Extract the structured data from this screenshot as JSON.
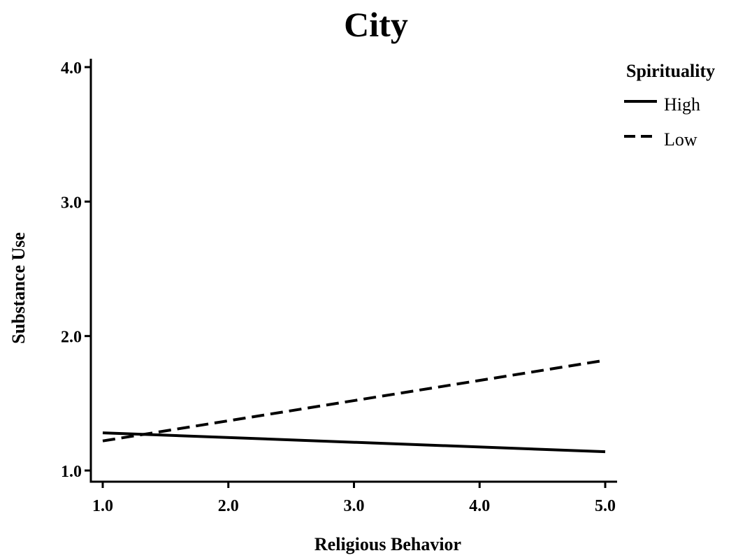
{
  "chart_data": {
    "type": "line",
    "title": "City",
    "xlabel": "Religious Behavior",
    "ylabel": "Substance Use",
    "xlim": [
      1.0,
      5.0
    ],
    "ylim": [
      1.0,
      4.0
    ],
    "xticks": [
      "1.0",
      "2.0",
      "3.0",
      "4.0",
      "5.0"
    ],
    "yticks": [
      "1.0",
      "2.0",
      "3.0",
      "4.0"
    ],
    "grid": false,
    "legend": {
      "title": "Spirituality",
      "placement": "top-right"
    },
    "x": [
      1.0,
      5.0
    ],
    "series": [
      {
        "name": "High",
        "style": "solid",
        "color": "#000000",
        "values": [
          1.28,
          1.14
        ]
      },
      {
        "name": "Low",
        "style": "dashed",
        "color": "#000000",
        "values": [
          1.22,
          1.82
        ]
      }
    ]
  }
}
